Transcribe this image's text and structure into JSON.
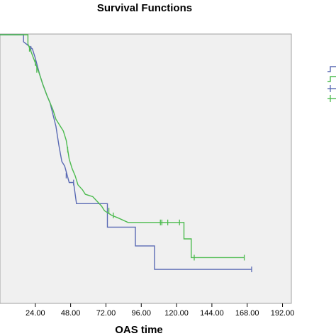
{
  "chart_data": {
    "type": "line",
    "title": "Survival Functions",
    "xlabel": "OAS time",
    "ylabel": "",
    "x_ticks": [
      "24.00",
      "48.00",
      "72.00",
      "96.00",
      "120.00",
      "144.00",
      "168.00",
      "192.00"
    ],
    "x_tick_values": [
      24,
      48,
      72,
      96,
      120,
      144,
      168,
      192
    ],
    "xlim": [
      0,
      198
    ],
    "ylim": [
      0,
      1
    ],
    "grid": false,
    "background": "#f0f0f0",
    "legend_position": "right",
    "series": [
      {
        "color": "#5a6ab4",
        "steps": [
          [
            0,
            1.0
          ],
          [
            16,
            1.0
          ],
          [
            16,
            0.97
          ],
          [
            22,
            0.94
          ],
          [
            24,
            0.9
          ],
          [
            27,
            0.83
          ],
          [
            29,
            0.79
          ],
          [
            32,
            0.74
          ],
          [
            34,
            0.71
          ],
          [
            36,
            0.66
          ],
          [
            38,
            0.61
          ],
          [
            40,
            0.53
          ],
          [
            42,
            0.46
          ],
          [
            44,
            0.44
          ],
          [
            47,
            0.37
          ],
          [
            50,
            0.37
          ],
          [
            52,
            0.28
          ],
          [
            73,
            0.28
          ],
          [
            73,
            0.18
          ],
          [
            92,
            0.18
          ],
          [
            92,
            0.1
          ],
          [
            105,
            0.1
          ],
          [
            105,
            0.0
          ],
          [
            171,
            0.0
          ]
        ],
        "censored": [
          [
            21,
            0.94
          ],
          [
            45,
            0.4
          ],
          [
            50,
            0.37
          ],
          [
            171,
            0.0
          ]
        ]
      },
      {
        "color": "#4dbb4f",
        "steps": [
          [
            0,
            1.0
          ],
          [
            19,
            1.0
          ],
          [
            19,
            0.96
          ],
          [
            21,
            0.93
          ],
          [
            24,
            0.88
          ],
          [
            27,
            0.83
          ],
          [
            29,
            0.79
          ],
          [
            32,
            0.74
          ],
          [
            34,
            0.71
          ],
          [
            36,
            0.68
          ],
          [
            38,
            0.64
          ],
          [
            40,
            0.62
          ],
          [
            43,
            0.59
          ],
          [
            45,
            0.55
          ],
          [
            47,
            0.47
          ],
          [
            49,
            0.43
          ],
          [
            51,
            0.4
          ],
          [
            53,
            0.36
          ],
          [
            56,
            0.34
          ],
          [
            58,
            0.32
          ],
          [
            63,
            0.31
          ],
          [
            66,
            0.29
          ],
          [
            69,
            0.27
          ],
          [
            71,
            0.25
          ],
          [
            76,
            0.23
          ],
          [
            80,
            0.22
          ],
          [
            87,
            0.2
          ],
          [
            125,
            0.2
          ],
          [
            125,
            0.13
          ],
          [
            130,
            0.13
          ],
          [
            130,
            0.05
          ],
          [
            166,
            0.05
          ]
        ],
        "censored": [
          [
            20,
            0.94
          ],
          [
            24,
            0.88
          ],
          [
            25,
            0.85
          ],
          [
            46,
            0.51
          ],
          [
            74,
            0.25
          ],
          [
            77,
            0.23
          ],
          [
            109,
            0.2
          ],
          [
            110,
            0.2
          ],
          [
            114,
            0.2
          ],
          [
            122,
            0.2
          ],
          [
            132,
            0.05
          ],
          [
            166,
            0.05
          ]
        ]
      }
    ]
  }
}
